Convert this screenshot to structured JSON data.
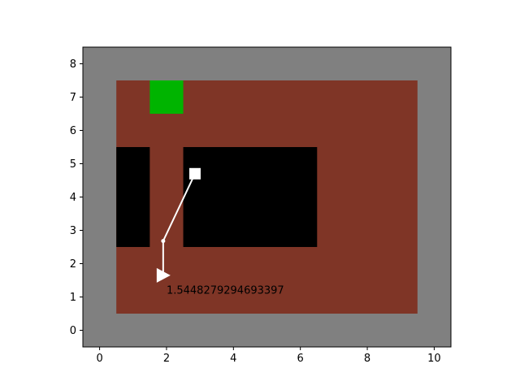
{
  "colors": {
    "background": "#808080",
    "floor": "#7f3526",
    "wall": "#000000",
    "goal": "#00b400",
    "agent": "#ffffff",
    "path": "#ffffff"
  },
  "chart_data": {
    "type": "grid-world",
    "xlim": [
      -0.5,
      10.5
    ],
    "ylim": [
      -0.5,
      8.5
    ],
    "x_ticks": [
      0,
      2,
      4,
      6,
      8,
      10
    ],
    "y_ticks": [
      0,
      1,
      2,
      3,
      4,
      5,
      6,
      7,
      8
    ],
    "x_tick_labels": [
      "0",
      "2",
      "4",
      "6",
      "8",
      "10"
    ],
    "y_tick_labels": [
      "0",
      "1",
      "2",
      "3",
      "4",
      "5",
      "6",
      "7",
      "8"
    ],
    "floor": {
      "x0": 0.5,
      "x1": 9.5,
      "y0": 0.5,
      "y1": 7.5
    },
    "walls": [
      {
        "name": "wall-left",
        "x0": 0.5,
        "x1": 1.5,
        "y0": 2.5,
        "y1": 5.5
      },
      {
        "name": "wall-center",
        "x0": 2.5,
        "x1": 6.5,
        "y0": 2.5,
        "y1": 5.5
      }
    ],
    "goal": {
      "x0": 1.5,
      "x1": 2.5,
      "y0": 6.5,
      "y1": 7.5
    },
    "start_marker": {
      "x": 2.85,
      "y": 4.7,
      "shape": "square"
    },
    "path_points": [
      [
        2.85,
        4.7
      ],
      [
        1.9,
        2.68
      ],
      [
        1.9,
        1.65
      ]
    ],
    "agent": {
      "x": 1.9,
      "y": 1.65,
      "shape": "triangle-right"
    },
    "annotation": {
      "text": "1.5448279294693397",
      "x": 2.0,
      "y": 1.1
    }
  }
}
